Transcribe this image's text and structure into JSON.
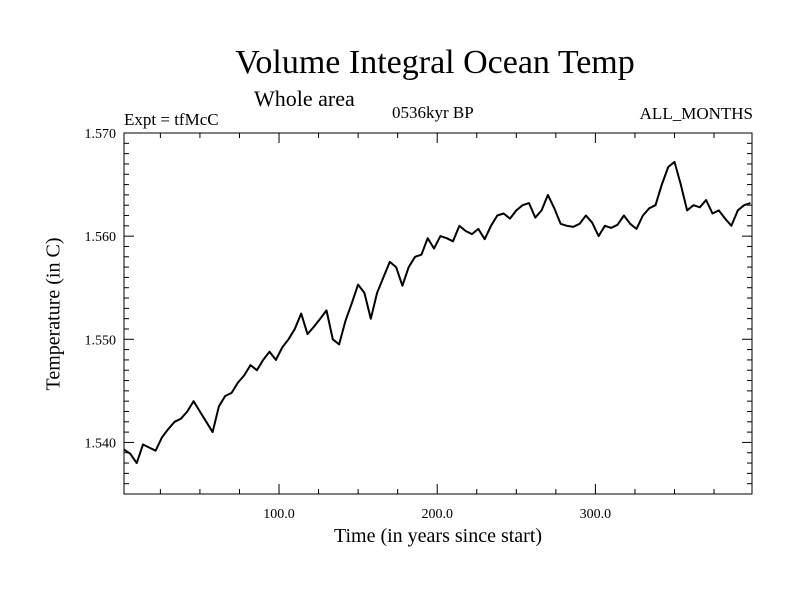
{
  "chart_data": {
    "type": "line",
    "title": "Volume Integral Ocean Temp",
    "subtitle": "Whole area",
    "annotations": {
      "experiment": "Expt = tfMcC",
      "era": "0536kyr BP",
      "months": "ALL_MONTHS"
    },
    "xlabel": "Time (in years since start)",
    "ylabel": "Temperature (in C)",
    "xlim": [
      2,
      399
    ],
    "ylim": [
      1.535,
      1.57
    ],
    "xticks": [
      100,
      200,
      300
    ],
    "xtick_labels": [
      "100.0",
      "200.0",
      "300.0"
    ],
    "yticks": [
      1.54,
      1.55,
      1.56,
      1.57
    ],
    "ytick_labels": [
      "1.540",
      "1.550",
      "1.560",
      "1.570"
    ],
    "grid": false,
    "series": [
      {
        "color": "#000000",
        "x": [
          2,
          6,
          10,
          14,
          18,
          22,
          26,
          30,
          34,
          38,
          42,
          46,
          50,
          54,
          58,
          62,
          66,
          70,
          74,
          78,
          82,
          86,
          90,
          94,
          98,
          102,
          106,
          110,
          114,
          118,
          122,
          126,
          130,
          134,
          138,
          142,
          146,
          150,
          154,
          158,
          162,
          166,
          170,
          174,
          178,
          182,
          186,
          190,
          194,
          198,
          202,
          206,
          210,
          214,
          218,
          222,
          226,
          230,
          234,
          238,
          242,
          246,
          250,
          254,
          258,
          262,
          266,
          270,
          274,
          278,
          282,
          286,
          290,
          294,
          298,
          302,
          306,
          310,
          314,
          318,
          322,
          326,
          330,
          334,
          338,
          342,
          346,
          350,
          354,
          358,
          362,
          366,
          370,
          374,
          378,
          382,
          386,
          390,
          394,
          398
        ],
        "values": [
          1.5393,
          1.5389,
          1.538,
          1.5398,
          1.5395,
          1.5392,
          1.5405,
          1.5413,
          1.542,
          1.5423,
          1.543,
          1.544,
          1.543,
          1.542,
          1.541,
          1.5435,
          1.5445,
          1.5448,
          1.5458,
          1.5465,
          1.5475,
          1.547,
          1.548,
          1.5488,
          1.548,
          1.5492,
          1.55,
          1.551,
          1.5525,
          1.5505,
          1.5512,
          1.552,
          1.5528,
          1.55,
          1.5495,
          1.5518,
          1.5535,
          1.5553,
          1.5545,
          1.552,
          1.5545,
          1.556,
          1.5575,
          1.557,
          1.5552,
          1.557,
          1.558,
          1.5582,
          1.5598,
          1.5588,
          1.56,
          1.5598,
          1.5595,
          1.561,
          1.5605,
          1.5602,
          1.5607,
          1.5597,
          1.561,
          1.562,
          1.5622,
          1.5617,
          1.5625,
          1.563,
          1.5632,
          1.5618,
          1.5625,
          1.564,
          1.5627,
          1.5612,
          1.561,
          1.5609,
          1.5612,
          1.562,
          1.5613,
          1.56,
          1.561,
          1.5608,
          1.5611,
          1.562,
          1.5612,
          1.5607,
          1.562,
          1.5627,
          1.563,
          1.565,
          1.5667,
          1.5672,
          1.565,
          1.5625,
          1.563,
          1.5628,
          1.5635,
          1.5622,
          1.5625,
          1.5617,
          1.561,
          1.5625,
          1.563,
          1.5632
        ]
      }
    ]
  }
}
